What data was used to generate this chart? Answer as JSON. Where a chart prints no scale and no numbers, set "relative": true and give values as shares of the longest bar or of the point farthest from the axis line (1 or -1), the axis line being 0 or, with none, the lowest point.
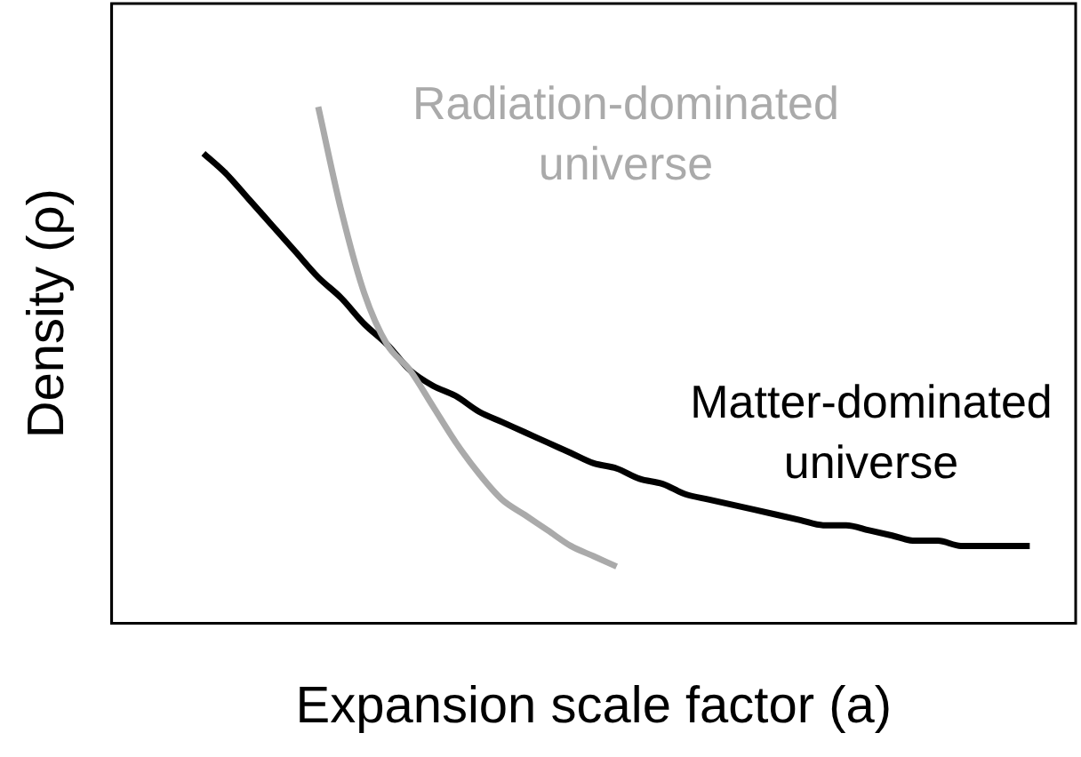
{
  "chart_data": {
    "type": "line",
    "relative": true,
    "xlabel": "Expansion scale factor (a)",
    "ylabel": "Density (ρ)",
    "categories": [
      null,
      null,
      null,
      null,
      null,
      null,
      null,
      null,
      null,
      null,
      null,
      null,
      null,
      null,
      null,
      null,
      null,
      null,
      null,
      null,
      null,
      null,
      null,
      null,
      null,
      null,
      null,
      null,
      null,
      null,
      null,
      null,
      null,
      null,
      null,
      null,
      null,
      null,
      null,
      null,
      null,
      null,
      null
    ],
    "series": [
      {
        "name": "Radiation-dominated universe",
        "color": "#aaaaaa",
        "values": [
          null,
          null,
          null,
          null,
          null,
          null,
          null,
          null,
          null,
          1.0,
          0.8,
          0.64,
          0.54,
          0.49,
          0.42,
          0.35,
          0.29,
          0.24,
          0.21,
          0.18,
          0.15,
          0.13,
          0.11,
          null,
          null,
          null,
          null,
          null,
          null,
          null,
          null,
          null,
          null,
          null,
          null,
          null,
          null,
          null,
          null,
          null,
          null,
          null,
          null
        ]
      },
      {
        "name": "Matter-dominated universe",
        "color": "#000000",
        "values": [
          null,
          null,
          null,
          null,
          0.91,
          0.87,
          0.82,
          0.77,
          0.72,
          0.67,
          0.63,
          0.58,
          0.54,
          0.49,
          0.46,
          0.44,
          0.41,
          0.39,
          0.37,
          0.35,
          0.33,
          0.31,
          0.3,
          0.28,
          0.27,
          0.25,
          0.24,
          0.23,
          0.22,
          0.21,
          0.2,
          0.19,
          0.19,
          0.18,
          0.17,
          0.16,
          0.16,
          0.15,
          0.15,
          0.15,
          0.15,
          null,
          null
        ]
      }
    ],
    "legend": false,
    "grid": false,
    "marker": "none",
    "line_style": "solid"
  }
}
